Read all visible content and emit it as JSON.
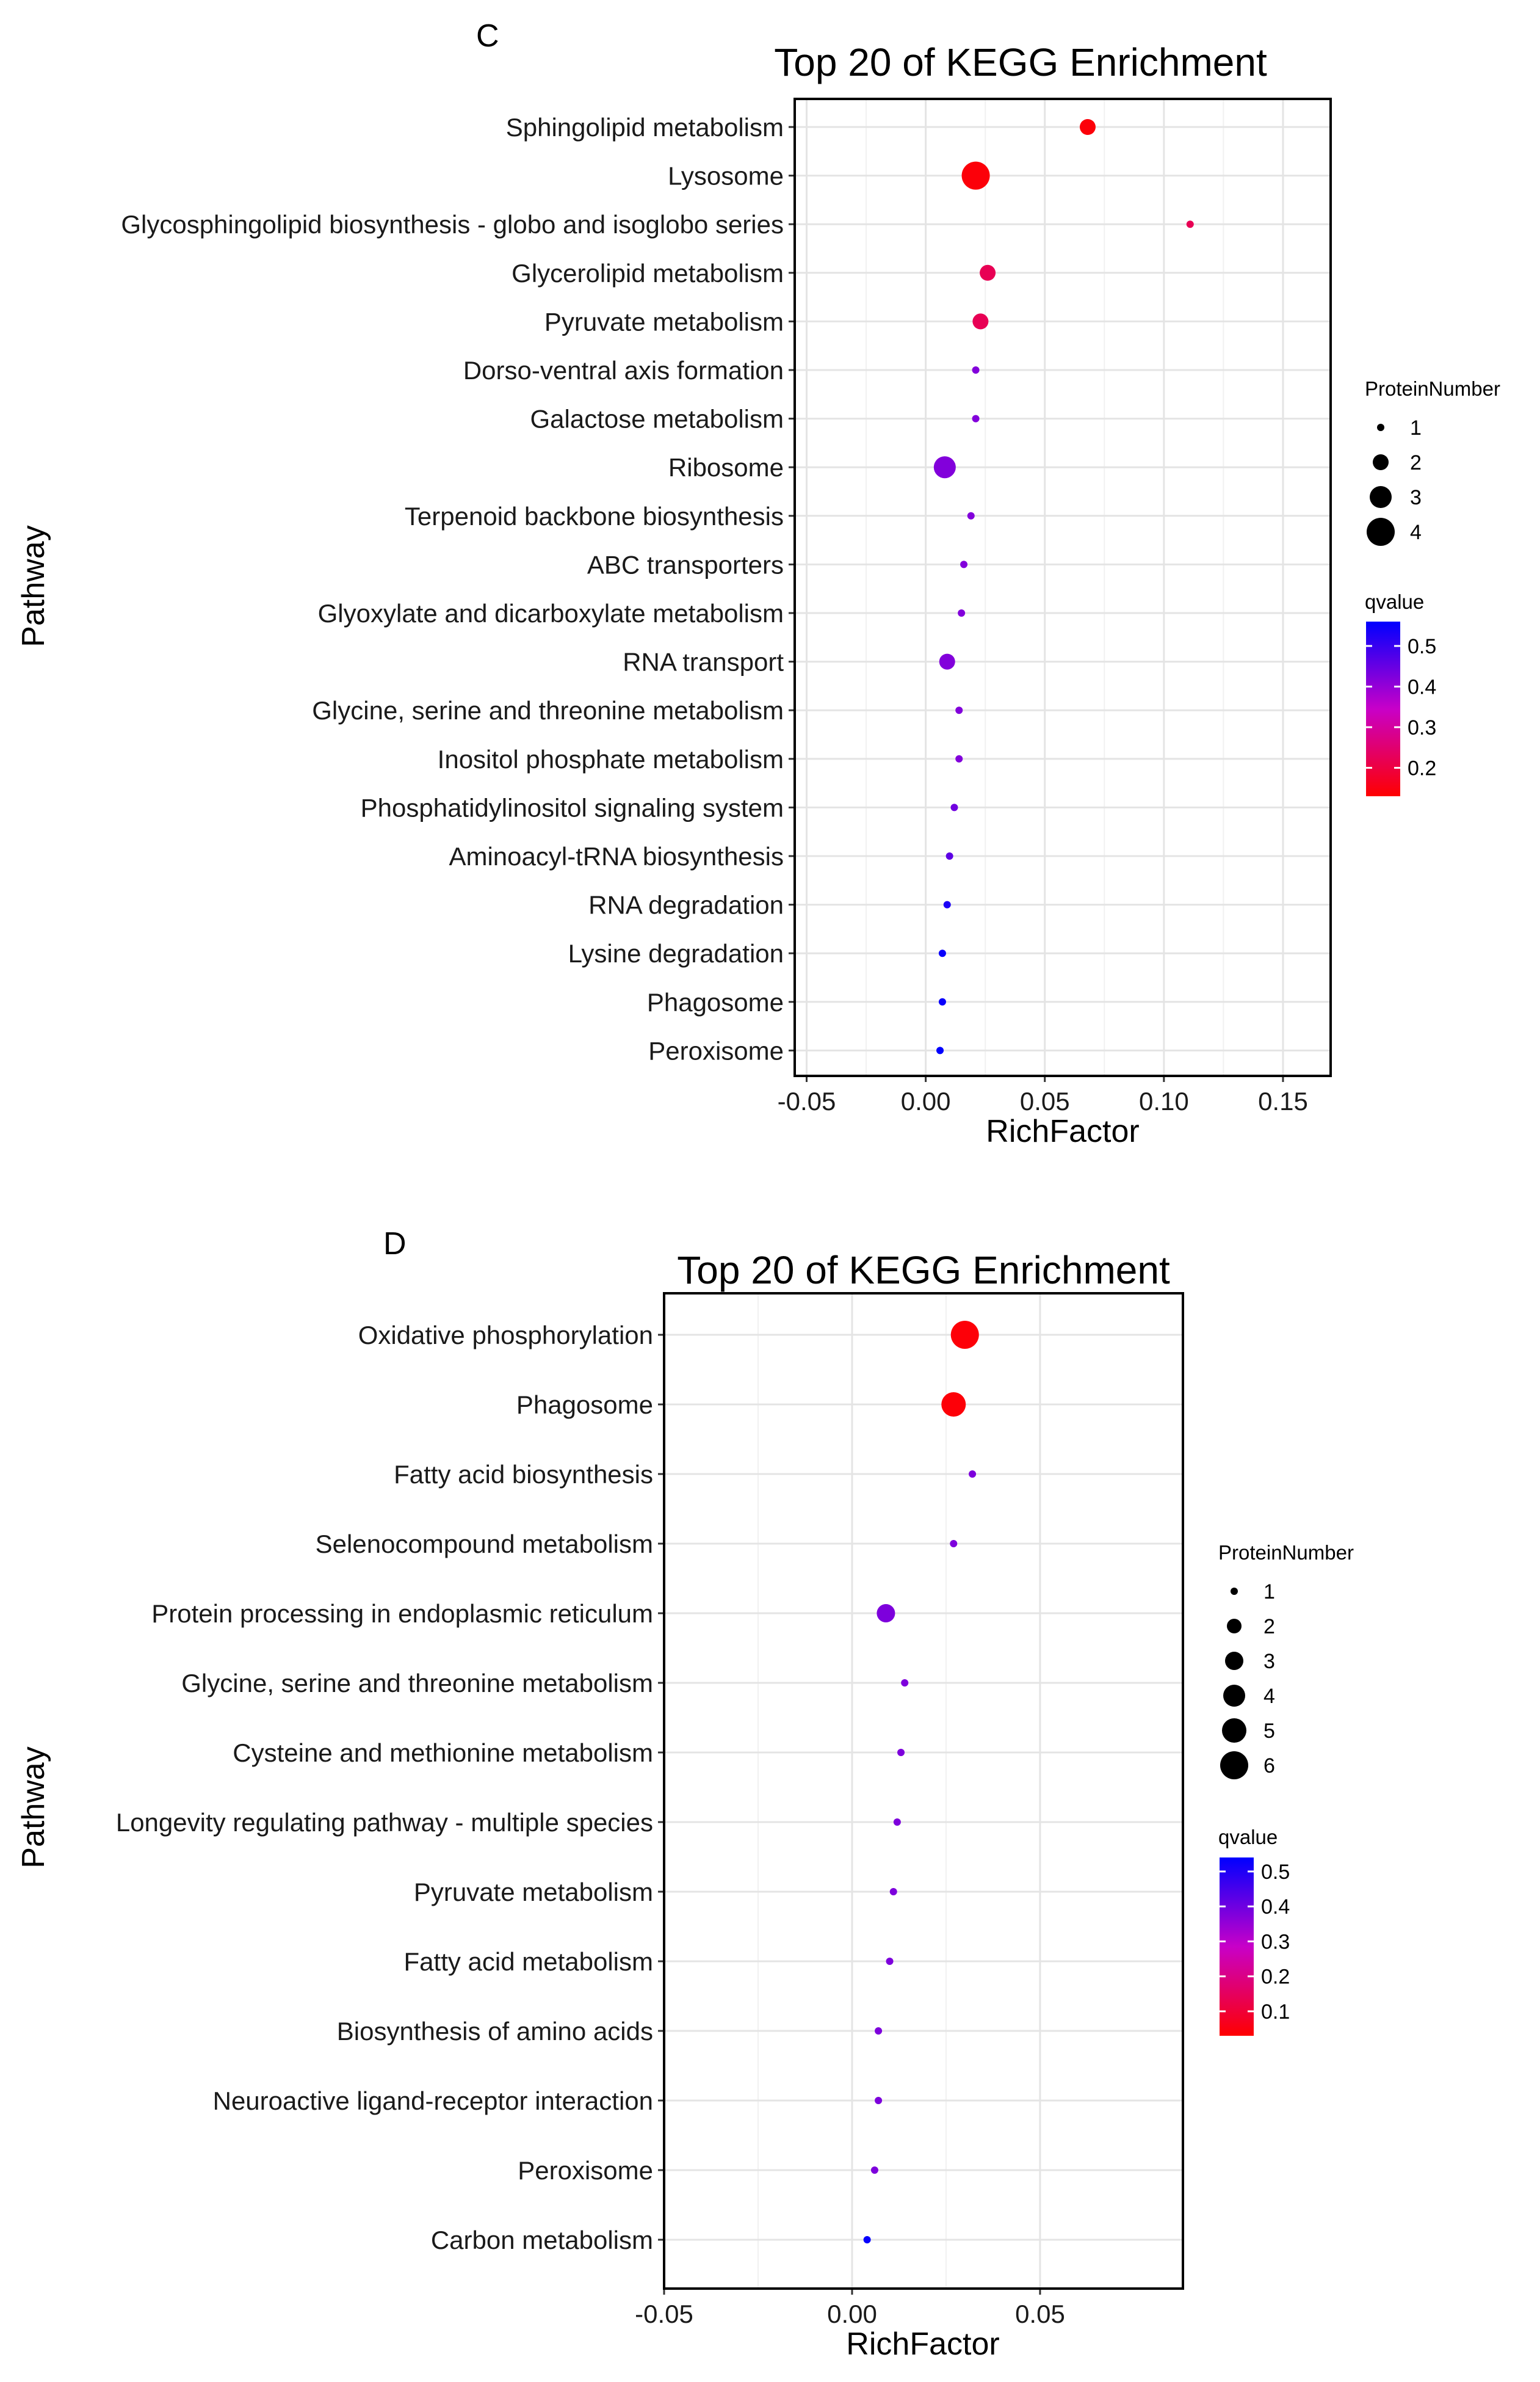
{
  "chart_data": [
    {
      "type": "scatter",
      "panel_label": "C",
      "title": "Top 20 of KEGG Enrichment",
      "xlabel": "RichFactor",
      "ylabel": "Pathway",
      "xlim": [
        -0.055,
        0.17
      ],
      "xticks": [
        -0.05,
        0.0,
        0.05,
        0.1,
        0.15
      ],
      "xtick_labels": [
        "-0.05",
        "0.00",
        "0.05",
        "0.10",
        "0.15"
      ],
      "grid": true,
      "legend_position": "right",
      "size_legend": {
        "title": "ProteinNumber",
        "levels": [
          1,
          2,
          3,
          4
        ]
      },
      "color_legend": {
        "title": "qvalue",
        "range": [
          0.13,
          0.56
        ],
        "ticks": [
          0.5,
          0.4,
          0.3,
          0.2
        ],
        "tick_labels": [
          "0.5",
          "0.4",
          "0.3",
          "0.2"
        ],
        "low_color": "#ff0000",
        "high_color": "#0000ff"
      },
      "points": [
        {
          "pathway": "Sphingolipid metabolism",
          "richfactor": 0.068,
          "protein_number": 2,
          "qvalue": 0.14
        },
        {
          "pathway": "Lysosome",
          "richfactor": 0.021,
          "protein_number": 4,
          "qvalue": 0.14
        },
        {
          "pathway": "Glycosphingolipid biosynthesis - globo and isoglobo series",
          "richfactor": 0.111,
          "protein_number": 1,
          "qvalue": 0.22
        },
        {
          "pathway": "Glycerolipid metabolism",
          "richfactor": 0.026,
          "protein_number": 2,
          "qvalue": 0.22
        },
        {
          "pathway": "Pyruvate metabolism",
          "richfactor": 0.023,
          "protein_number": 2,
          "qvalue": 0.22
        },
        {
          "pathway": "Dorso-ventral axis formation",
          "richfactor": 0.021,
          "protein_number": 1,
          "qvalue": 0.42
        },
        {
          "pathway": "Galactose metabolism",
          "richfactor": 0.021,
          "protein_number": 1,
          "qvalue": 0.42
        },
        {
          "pathway": "Ribosome",
          "richfactor": 0.008,
          "protein_number": 3,
          "qvalue": 0.42
        },
        {
          "pathway": "Terpenoid backbone biosynthesis",
          "richfactor": 0.019,
          "protein_number": 1,
          "qvalue": 0.42
        },
        {
          "pathway": "ABC transporters",
          "richfactor": 0.016,
          "protein_number": 1,
          "qvalue": 0.42
        },
        {
          "pathway": "Glyoxylate and dicarboxylate metabolism",
          "richfactor": 0.015,
          "protein_number": 1,
          "qvalue": 0.42
        },
        {
          "pathway": "RNA transport",
          "richfactor": 0.009,
          "protein_number": 2,
          "qvalue": 0.42
        },
        {
          "pathway": "Glycine, serine and threonine metabolism",
          "richfactor": 0.014,
          "protein_number": 1,
          "qvalue": 0.42
        },
        {
          "pathway": "Inositol phosphate metabolism",
          "richfactor": 0.014,
          "protein_number": 1,
          "qvalue": 0.42
        },
        {
          "pathway": "Phosphatidylinositol signaling system",
          "richfactor": 0.012,
          "protein_number": 1,
          "qvalue": 0.44
        },
        {
          "pathway": "Aminoacyl-tRNA biosynthesis",
          "richfactor": 0.01,
          "protein_number": 1,
          "qvalue": 0.46
        },
        {
          "pathway": "RNA degradation",
          "richfactor": 0.009,
          "protein_number": 1,
          "qvalue": 0.53
        },
        {
          "pathway": "Lysine degradation",
          "richfactor": 0.007,
          "protein_number": 1,
          "qvalue": 0.55
        },
        {
          "pathway": "Phagosome",
          "richfactor": 0.007,
          "protein_number": 1,
          "qvalue": 0.55
        },
        {
          "pathway": "Peroxisome",
          "richfactor": 0.006,
          "protein_number": 1,
          "qvalue": 0.56
        }
      ]
    },
    {
      "type": "scatter",
      "panel_label": "D",
      "title": "Top 20 of KEGG Enrichment",
      "xlabel": "RichFactor",
      "ylabel": "Pathway",
      "xlim": [
        -0.05,
        0.088
      ],
      "xticks": [
        -0.05,
        0.0,
        0.05
      ],
      "xtick_labels": [
        "-0.05",
        "0.00",
        "0.05"
      ],
      "grid": true,
      "legend_position": "right",
      "size_legend": {
        "title": "ProteinNumber",
        "levels": [
          1,
          2,
          3,
          4,
          5,
          6
        ]
      },
      "color_legend": {
        "title": "qvalue",
        "range": [
          0.03,
          0.54
        ],
        "ticks": [
          0.5,
          0.4,
          0.3,
          0.2,
          0.1
        ],
        "tick_labels": [
          "0.5",
          "0.4",
          "0.3",
          "0.2",
          "0.1"
        ],
        "low_color": "#ff0000",
        "high_color": "#0000ff"
      },
      "points": [
        {
          "pathway": "Oxidative phosphorylation",
          "richfactor": 0.03,
          "protein_number": 6,
          "qvalue": 0.04
        },
        {
          "pathway": "Phagosome",
          "richfactor": 0.027,
          "protein_number": 5,
          "qvalue": 0.04
        },
        {
          "pathway": "Fatty acid biosynthesis",
          "richfactor": 0.032,
          "protein_number": 1,
          "qvalue": 0.38
        },
        {
          "pathway": "Selenocompound metabolism",
          "richfactor": 0.027,
          "protein_number": 1,
          "qvalue": 0.38
        },
        {
          "pathway": "Protein processing in endoplasmic reticulum",
          "richfactor": 0.009,
          "protein_number": 3,
          "qvalue": 0.38
        },
        {
          "pathway": "Glycine, serine and threonine metabolism",
          "richfactor": 0.014,
          "protein_number": 1,
          "qvalue": 0.38
        },
        {
          "pathway": "Cysteine and methionine metabolism",
          "richfactor": 0.013,
          "protein_number": 1,
          "qvalue": 0.38
        },
        {
          "pathway": "Longevity regulating pathway - multiple species",
          "richfactor": 0.012,
          "protein_number": 1,
          "qvalue": 0.38
        },
        {
          "pathway": "Pyruvate metabolism",
          "richfactor": 0.011,
          "protein_number": 1,
          "qvalue": 0.38
        },
        {
          "pathway": "Fatty acid metabolism",
          "richfactor": 0.01,
          "protein_number": 1,
          "qvalue": 0.38
        },
        {
          "pathway": "Biosynthesis of amino acids",
          "richfactor": 0.007,
          "protein_number": 1,
          "qvalue": 0.38
        },
        {
          "pathway": "Neuroactive ligand-receptor interaction",
          "richfactor": 0.007,
          "protein_number": 1,
          "qvalue": 0.38
        },
        {
          "pathway": "Peroxisome",
          "richfactor": 0.006,
          "protein_number": 1,
          "qvalue": 0.38
        },
        {
          "pathway": "Carbon metabolism",
          "richfactor": 0.004,
          "protein_number": 1,
          "qvalue": 0.53
        }
      ]
    }
  ]
}
